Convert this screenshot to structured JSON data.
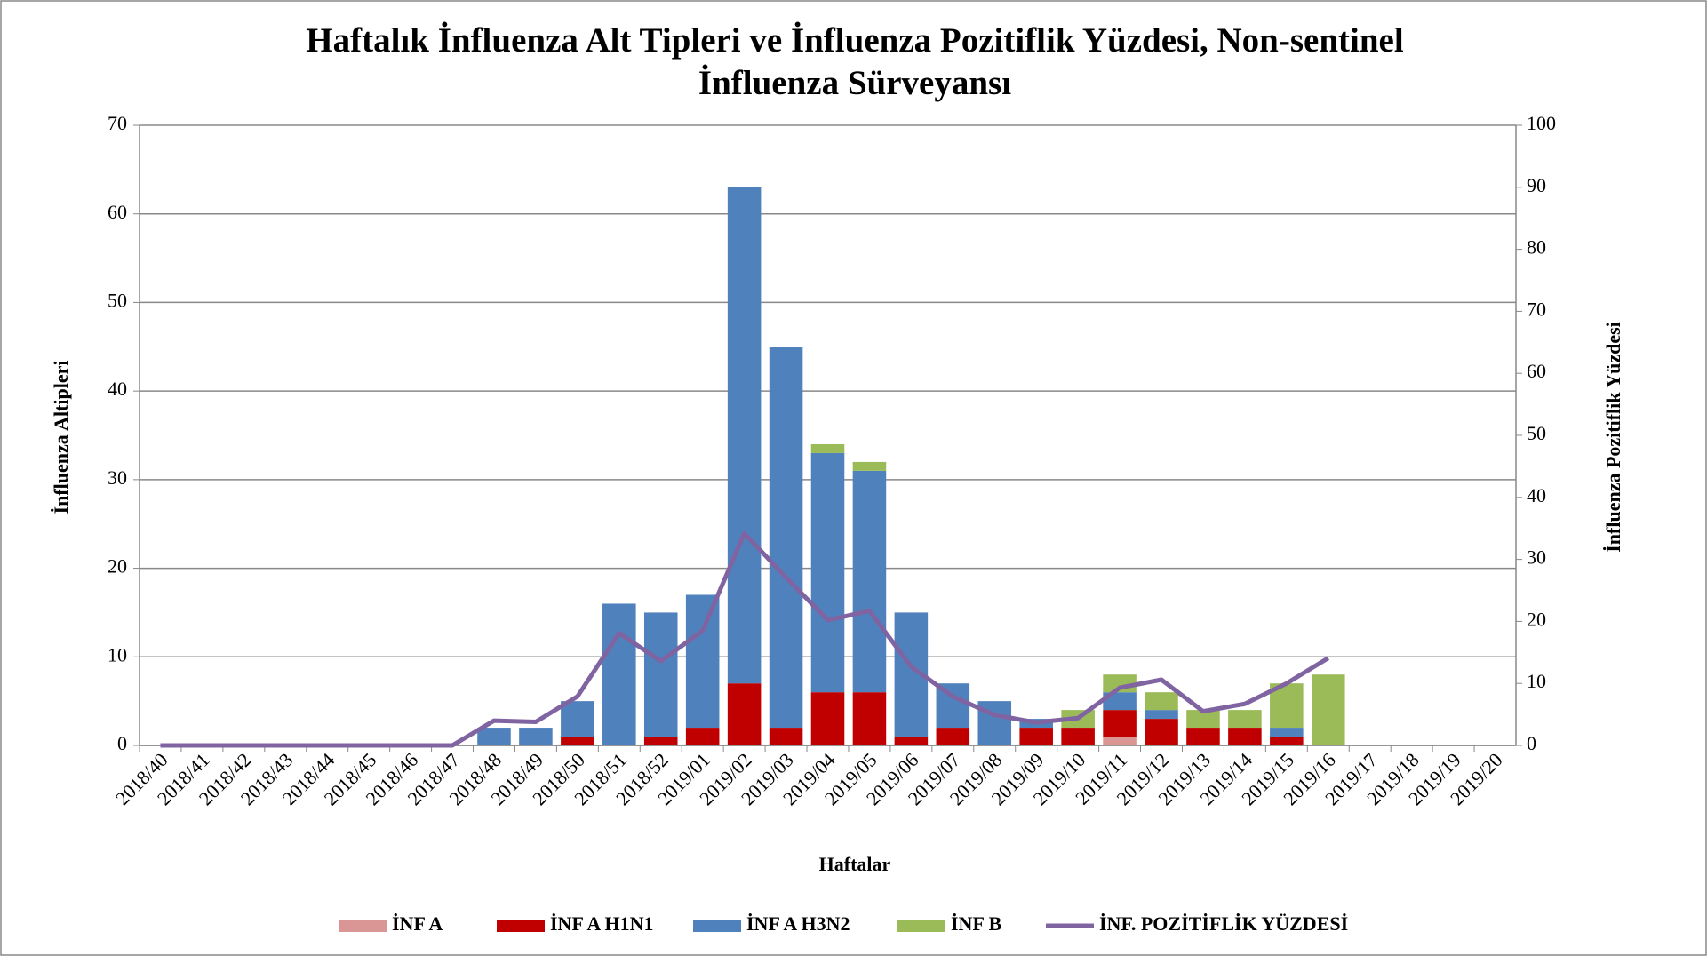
{
  "chart_data": {
    "type": "bar",
    "title": "Haftalık İnfluenza Alt Tipleri ve İnfluenza Pozitiflik Yüzdesi, Non-sentinel",
    "subtitle": "İnfluenza Sürveyansı",
    "x_label": "Haftalar",
    "y_label": "İnfluenza Altipleri",
    "y2_label": "İnfluenza Pozitiflik Yüzdesi",
    "stacked": true,
    "grid": true,
    "legend": "bottom",
    "categories": [
      "2018/40",
      "2018/41",
      "2018/42",
      "2018/43",
      "2018/44",
      "2018/45",
      "2018/46",
      "2018/47",
      "2018/48",
      "2018/49",
      "2018/50",
      "2018/51",
      "2018/52",
      "2019/01",
      "2019/02",
      "2019/03",
      "2019/04",
      "2019/05",
      "2019/06",
      "2019/07",
      "2019/08",
      "2019/09",
      "2019/10",
      "2019/11",
      "2019/12",
      "2019/13",
      "2019/14",
      "2019/15",
      "2019/16",
      "2019/17",
      "2019/18",
      "2019/19",
      "2019/20"
    ],
    "series": [
      {
        "name": "İNF A",
        "color": "#d99694",
        "values": [
          0,
          0,
          0,
          0,
          0,
          0,
          0,
          0,
          0,
          0,
          0,
          0,
          0,
          0,
          0,
          0,
          0,
          0,
          0,
          0,
          0,
          0,
          0,
          1,
          0,
          0,
          0,
          0,
          0,
          0,
          0,
          0,
          0
        ]
      },
      {
        "name": "İNF A H1N1",
        "color": "#c00000",
        "values": [
          0,
          0,
          0,
          0,
          0,
          0,
          0,
          0,
          0,
          0,
          1,
          0,
          1,
          2,
          7,
          2,
          6,
          6,
          1,
          2,
          0,
          2,
          2,
          3,
          3,
          2,
          2,
          1,
          0,
          0,
          0,
          0,
          0
        ]
      },
      {
        "name": "İNF A H3N2",
        "color": "#4f81bd",
        "values": [
          0,
          0,
          0,
          0,
          0,
          0,
          0,
          0,
          2,
          2,
          4,
          16,
          14,
          15,
          56,
          43,
          27,
          25,
          14,
          5,
          5,
          1,
          0,
          2,
          1,
          0,
          0,
          1,
          0,
          0,
          0,
          0,
          0
        ]
      },
      {
        "name": "İNF B",
        "color": "#9bbb59",
        "values": [
          0,
          0,
          0,
          0,
          0,
          0,
          0,
          0,
          0,
          0,
          0,
          0,
          0,
          0,
          0,
          0,
          1,
          1,
          0,
          0,
          0,
          0,
          2,
          2,
          2,
          2,
          2,
          5,
          8,
          0,
          0,
          0,
          0
        ]
      },
      {
        "name": "İNF. POZİTİFLİK YÜZDESİ",
        "color": "#8064a2",
        "type": "line",
        "axis": "y2",
        "values": [
          0,
          0,
          0,
          0,
          0,
          0,
          0,
          0,
          4.0,
          3.8,
          7.9,
          18.1,
          13.6,
          18.5,
          34.2,
          27.1,
          20.2,
          21.7,
          12.7,
          7.9,
          4.9,
          3.7,
          4.4,
          9.3,
          10.6,
          5.5,
          6.7,
          10.0,
          14.1,
          null,
          null,
          null,
          null
        ]
      }
    ],
    "ylim": [
      0,
      70
    ],
    "yticks": [
      0,
      10,
      20,
      30,
      40,
      50,
      60,
      70
    ],
    "y2lim": [
      0,
      100
    ],
    "y2ticks": [
      0,
      10,
      20,
      30,
      40,
      50,
      60,
      70,
      80,
      90,
      100
    ]
  }
}
